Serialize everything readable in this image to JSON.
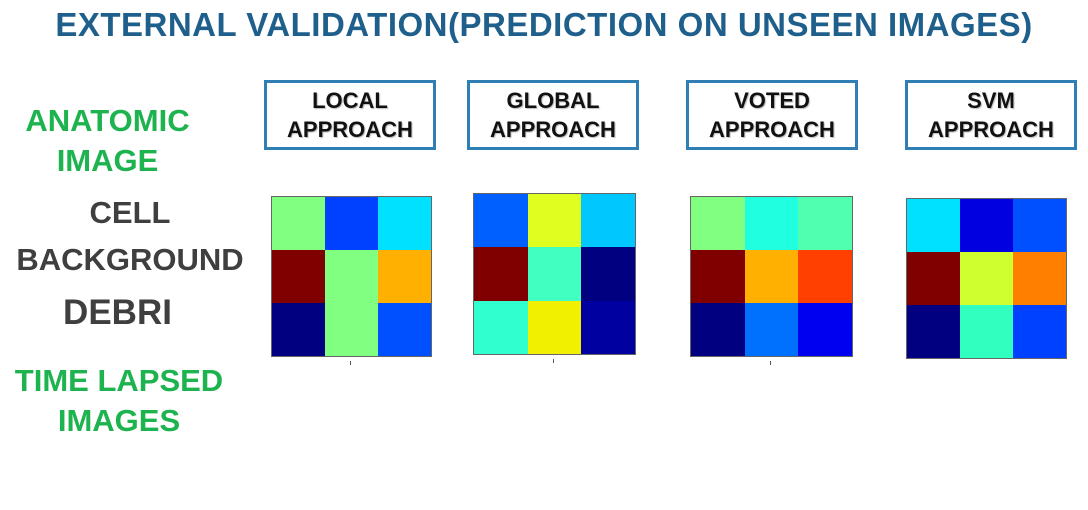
{
  "title": "EXTERNAL VALIDATION(PREDICTION ON UNSEEN IMAGES)",
  "labels": {
    "anatomic_line1": "ANATOMIC",
    "anatomic_line2": "IMAGE",
    "cell": "CELL",
    "background": "BACKGROUND",
    "debri": "DEBRI",
    "timelapsed_line1": "TIME LAPSED",
    "timelapsed_line2": "IMAGES"
  },
  "approaches": [
    {
      "line1": "LOCAL",
      "line2": "APPROACH",
      "cells": [
        "#80ff80",
        "#0040ff",
        "#00e0ff",
        "#800000",
        "#80ff80",
        "#ffb000",
        "#000080",
        "#80ff80",
        "#0050ff"
      ]
    },
    {
      "line1": "GLOBAL",
      "line2": "APPROACH",
      "cells": [
        "#0060ff",
        "#e0ff20",
        "#00c8ff",
        "#800000",
        "#40ffc0",
        "#000080",
        "#30ffd0",
        "#f0f000",
        "#0000a0"
      ]
    },
    {
      "line1": "VOTED",
      "line2": "APPROACH",
      "cells": [
        "#80ff80",
        "#20ffe0",
        "#50ffb0",
        "#800000",
        "#ffb000",
        "#ff4000",
        "#000080",
        "#0070ff",
        "#0000f0"
      ]
    },
    {
      "line1": "SVM",
      "line2": "APPROACH",
      "cells": [
        "#00e0ff",
        "#0000e0",
        "#0050ff",
        "#800000",
        "#d0ff30",
        "#ff8000",
        "#000080",
        "#30ffc0",
        "#0040ff"
      ]
    }
  ]
}
